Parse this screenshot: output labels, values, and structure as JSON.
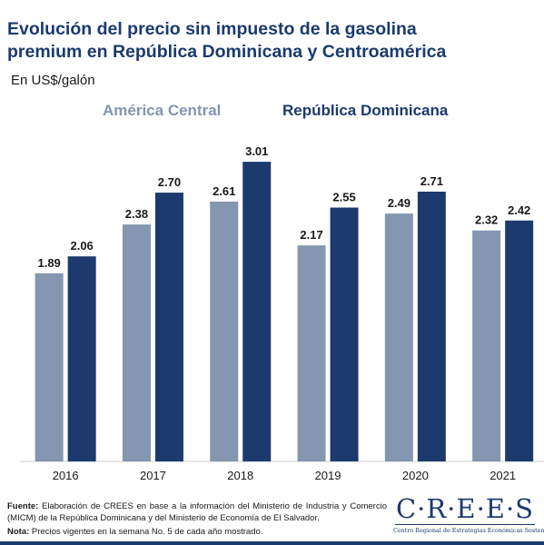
{
  "title_line1": "Evolución del precio sin impuesto de la gasolina",
  "title_line2": "premium en República Dominicana y Centroamérica",
  "chart_data": {
    "type": "bar",
    "title": "Evolución del precio sin impuesto de la gasolina premium en República Dominicana y Centroamérica",
    "ylabel": "En US$/galón",
    "categories": [
      "2016",
      "2017",
      "2018",
      "2019",
      "2020",
      "2021"
    ],
    "series": [
      {
        "name": "América Central",
        "color": "#8496b0",
        "values": [
          1.89,
          2.38,
          2.61,
          2.17,
          2.49,
          2.32
        ]
      },
      {
        "name": "República Dominicana",
        "color": "#1c3a6e",
        "values": [
          2.06,
          2.7,
          3.01,
          2.55,
          2.71,
          2.42
        ]
      }
    ],
    "ylim": [
      0,
      3.3
    ],
    "grid": false,
    "legend_position": "top"
  },
  "footer": {
    "source_label": "Fuente:",
    "source_text": " Elaboración de CREES en base a la información del Ministerio de Industria y Comercio (MICM) de la República Dominicana y del  Ministerio de Economía de El Salvador.",
    "note_label": "Nota:",
    "note_text": " Precios vigentes en la semana No. 5 de cada año mostrado."
  },
  "logo": {
    "word": "CREES",
    "subtitle": "Centro Regional de Estrategias Económicas Sostenibles"
  }
}
